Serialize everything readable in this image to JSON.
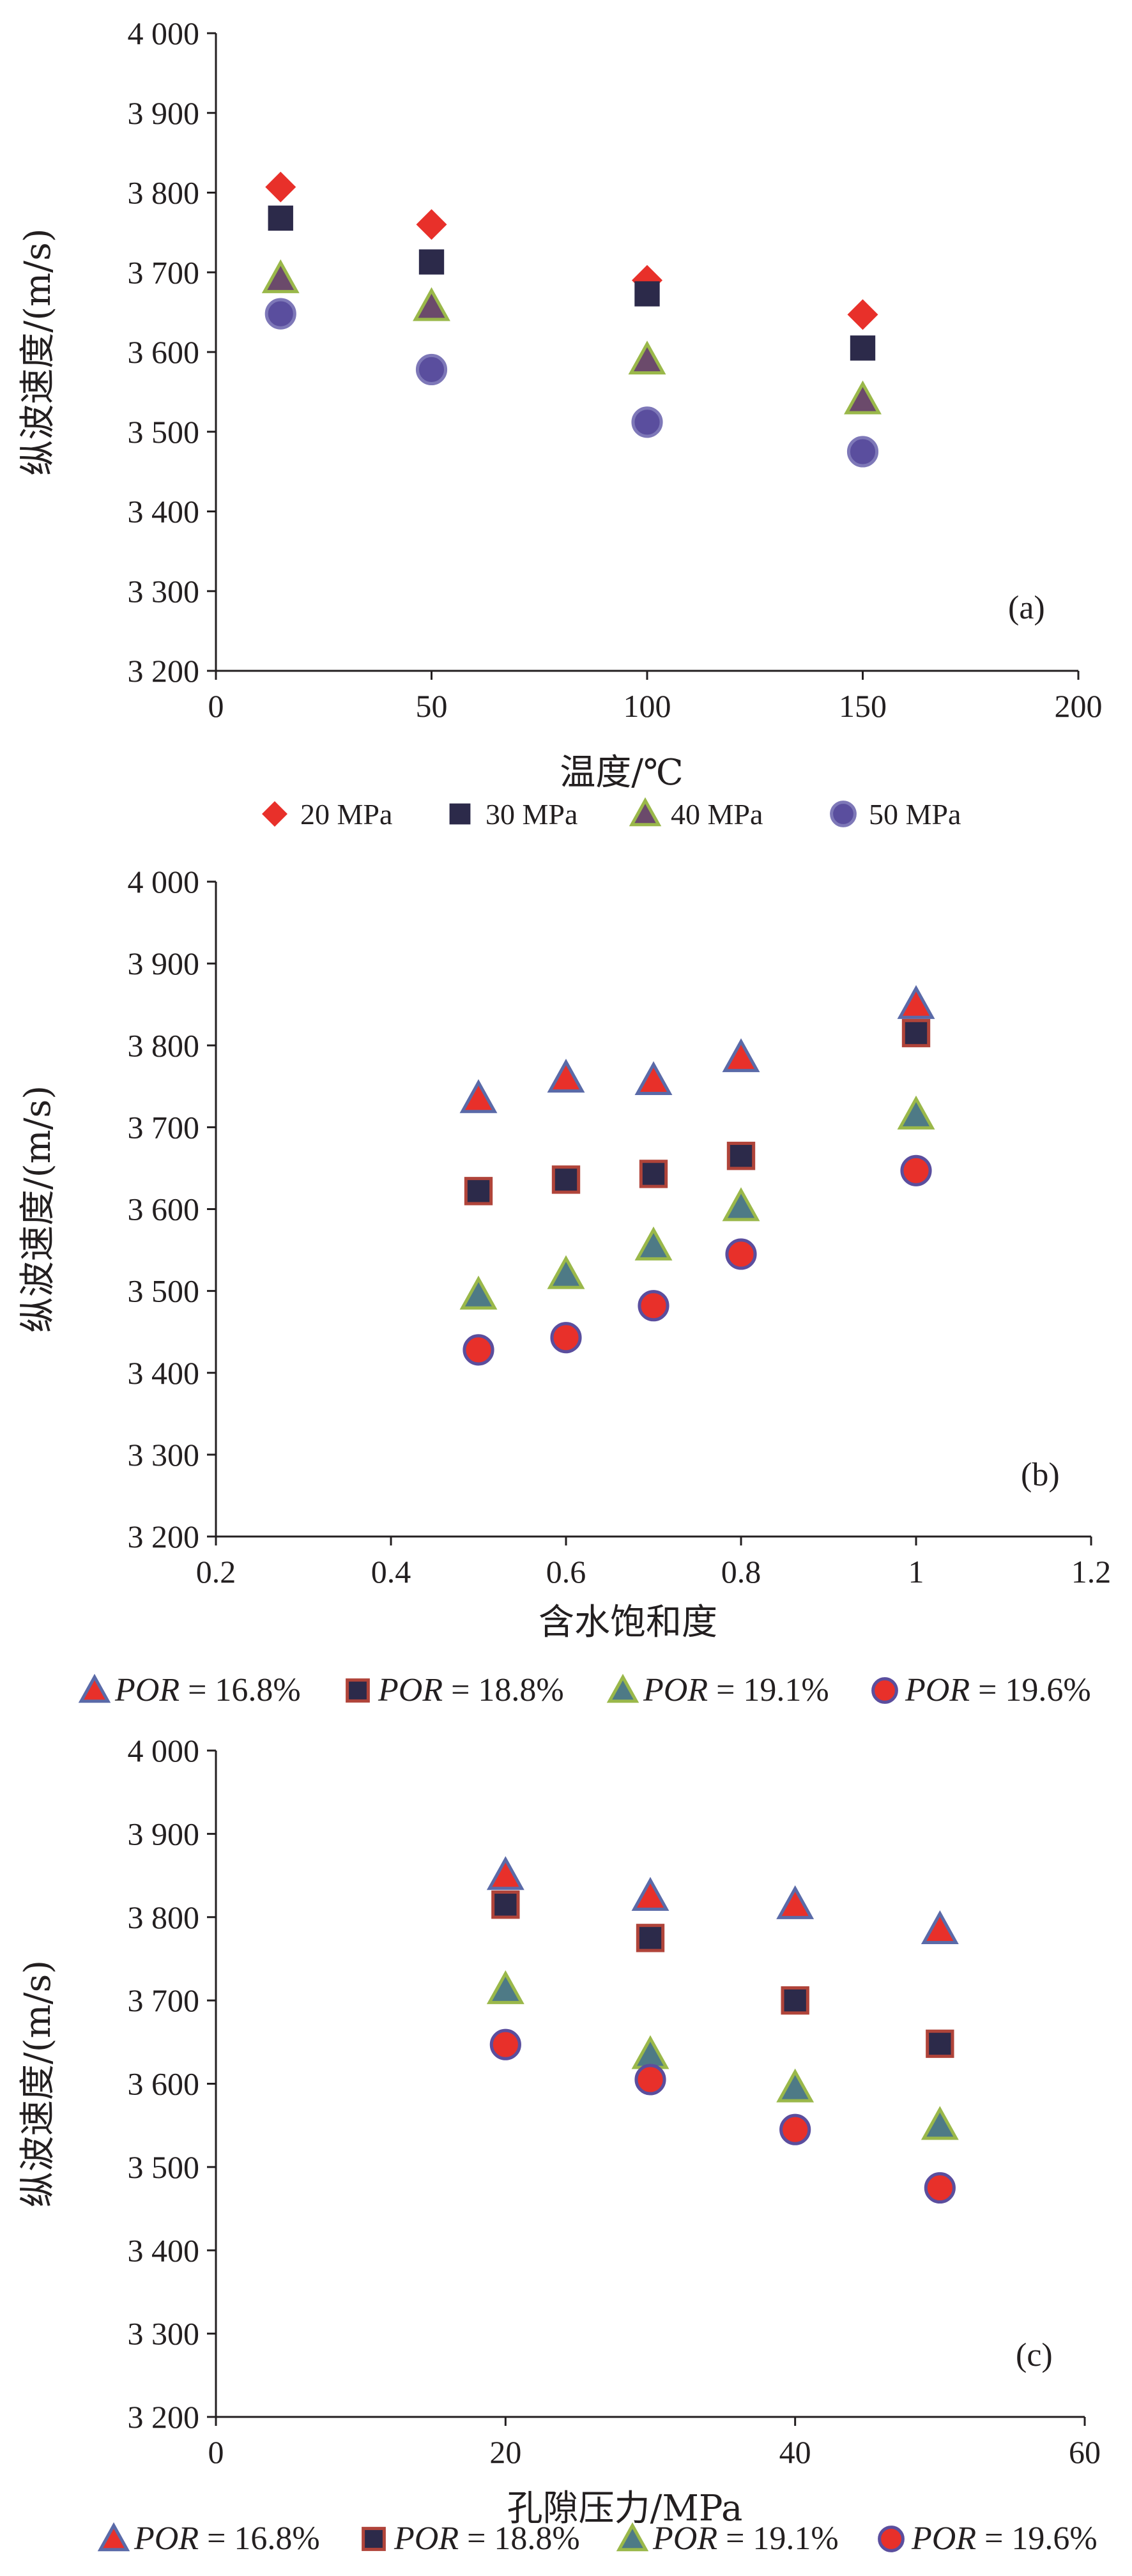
{
  "chart_data": [
    {
      "type": "scatter",
      "tag": "(a)",
      "xlabel": "温度/℃",
      "ylabel": "纵波速度/(m/s)",
      "xlim": [
        0,
        200
      ],
      "ylim": [
        3200,
        4000
      ],
      "xticks": [
        "0",
        "50",
        "100",
        "150",
        "200"
      ],
      "yticks": [
        "3 200",
        "3 300",
        "3 400",
        "3 500",
        "3 600",
        "3 700",
        "3 800",
        "3 900",
        "4 000"
      ],
      "grid": false,
      "legend_position": "bottom",
      "x": [
        15,
        50,
        100,
        150
      ],
      "series": [
        {
          "name": "20 MPa",
          "marker": "diamond",
          "color": "#e8302a",
          "values": [
            3807,
            3760,
            3690,
            3647
          ]
        },
        {
          "name": "30 MPa",
          "marker": "square",
          "color": "#2c2a4a",
          "values": [
            3768,
            3713,
            3673,
            3605
          ]
        },
        {
          "name": "40 MPa",
          "marker": "triangle",
          "color": "#6b4a6b",
          "edge": "#9ab84a",
          "values": [
            3692,
            3657,
            3590,
            3540
          ]
        },
        {
          "name": "50 MPa",
          "marker": "circle",
          "color": "#5a4e9e",
          "edge": "#7e78b8",
          "values": [
            3648,
            3578,
            3512,
            3475
          ]
        }
      ]
    },
    {
      "type": "scatter",
      "tag": "(b)",
      "xlabel": "含水饱和度",
      "ylabel": "纵波速度/(m/s)",
      "xlim": [
        0.2,
        1.2
      ],
      "ylim": [
        3200,
        4000
      ],
      "xticks": [
        "0.2",
        "0.4",
        "0.6",
        "0.8",
        "1",
        "1.2"
      ],
      "yticks": [
        "3 200",
        "3 300",
        "3 400",
        "3 500",
        "3 600",
        "3 700",
        "3 800",
        "3 900",
        "4 000"
      ],
      "grid": false,
      "legend_position": "bottom",
      "x": [
        0.5,
        0.6,
        0.7,
        0.8,
        1.0
      ],
      "series": [
        {
          "name": "POR = 16.8%",
          "marker": "triangle",
          "color": "#e8302a",
          "edge": "#5a6aa8",
          "values": [
            3735,
            3760,
            3757,
            3785,
            3850
          ]
        },
        {
          "name": "POR = 18.8%",
          "marker": "square",
          "color": "#2c2a4a",
          "edge": "#b0443a",
          "values": [
            3622,
            3636,
            3643,
            3665,
            3815
          ]
        },
        {
          "name": "POR = 19.1%",
          "marker": "triangle",
          "color": "#4e7a86",
          "edge": "#9ab84a",
          "values": [
            3495,
            3520,
            3555,
            3603,
            3715
          ]
        },
        {
          "name": "POR = 19.6%",
          "marker": "circle",
          "color": "#e8302a",
          "edge": "#5a4e9e",
          "values": [
            3428,
            3443,
            3482,
            3545,
            3647
          ]
        }
      ]
    },
    {
      "type": "scatter",
      "tag": "(c)",
      "xlabel": "孔隙压力/MPa",
      "ylabel": "纵波速度/(m/s)",
      "xlim": [
        0,
        60
      ],
      "ylim": [
        3200,
        4000
      ],
      "xticks": [
        "0",
        "20",
        "40",
        "60"
      ],
      "yticks": [
        "3 200",
        "3 300",
        "3 400",
        "3 500",
        "3 600",
        "3 700",
        "3 800",
        "3 900",
        "4 000"
      ],
      "grid": false,
      "legend_position": "bottom",
      "x": [
        20,
        30,
        40,
        50
      ],
      "series": [
        {
          "name": "POR = 16.8%",
          "marker": "triangle",
          "color": "#e8302a",
          "edge": "#5a6aa8",
          "values": [
            3850,
            3825,
            3815,
            3785
          ]
        },
        {
          "name": "POR = 18.8%",
          "marker": "square",
          "color": "#2c2a4a",
          "edge": "#b0443a",
          "values": [
            3815,
            3775,
            3700,
            3648
          ]
        },
        {
          "name": "POR = 19.1%",
          "marker": "triangle",
          "color": "#4e7a86",
          "edge": "#9ab84a",
          "values": [
            3713,
            3635,
            3595,
            3550
          ]
        },
        {
          "name": "POR = 19.6%",
          "marker": "circle",
          "color": "#e8302a",
          "edge": "#5a4e9e",
          "values": [
            3647,
            3605,
            3545,
            3475
          ]
        }
      ]
    }
  ]
}
